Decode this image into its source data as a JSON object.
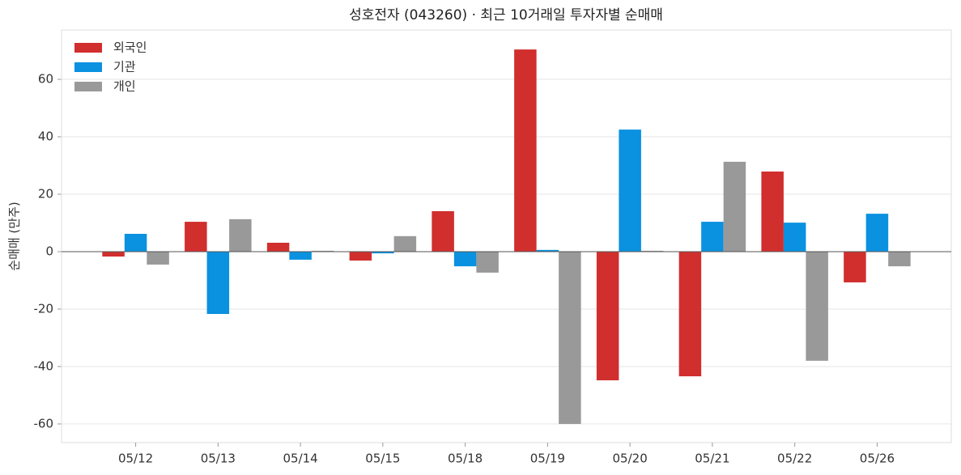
{
  "chart_data": {
    "type": "bar",
    "title": "성호전자 (043260) · 최근 10거래일 투자자별 순매매",
    "y_label": "순매매 (만주)",
    "categories": [
      "05/12",
      "05/13",
      "05/14",
      "05/15",
      "05/18",
      "05/19",
      "05/20",
      "05/21",
      "05/22",
      "05/26"
    ],
    "series": [
      {
        "name": "외국인",
        "color": "#d12e2e",
        "values": [
          -1.7,
          10.4,
          3.1,
          -3.1,
          14.1,
          70.4,
          -44.8,
          -43.4,
          27.9,
          -10.7
        ]
      },
      {
        "name": "기관",
        "color": "#0a91e0",
        "values": [
          6.2,
          -21.7,
          -2.8,
          -0.6,
          -5.1,
          0.6,
          42.5,
          10.4,
          10.1,
          13.2
        ]
      },
      {
        "name": "개인",
        "color": "#999999",
        "values": [
          -4.5,
          11.3,
          0.3,
          5.4,
          -7.3,
          -60,
          0.3,
          31.3,
          -38,
          -5.1
        ]
      }
    ],
    "ylim": [
      -66.5,
      77.2
    ],
    "yticks": [
      -60,
      -40,
      -20,
      0,
      20,
      40,
      60
    ],
    "grid": true,
    "legend": "upper left"
  }
}
